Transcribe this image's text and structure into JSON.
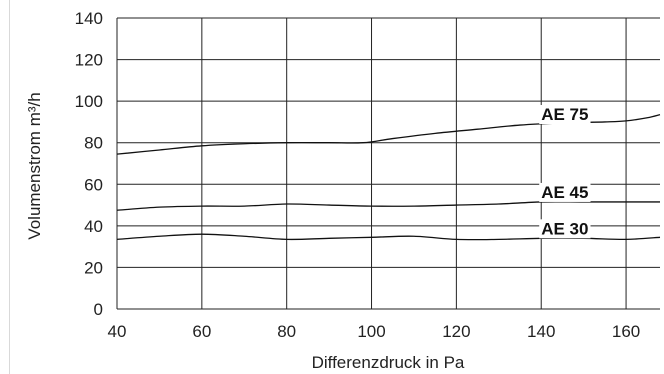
{
  "chart_data": {
    "type": "line",
    "xlabel": "Differenzdruck in Pa",
    "ylabel": "Volumenstrom m³/h",
    "xlim": [
      40,
      168
    ],
    "ylim": [
      0,
      140
    ],
    "x_ticks": [
      40,
      60,
      80,
      100,
      120,
      140,
      160
    ],
    "y_ticks": [
      0,
      20,
      40,
      60,
      80,
      100,
      120,
      140
    ],
    "grid": true,
    "series": [
      {
        "name": "AE 75",
        "x": [
          40,
          50,
          60,
          70,
          80,
          90,
          98,
          105,
          115,
          125,
          135,
          145,
          155,
          160,
          165,
          168
        ],
        "y": [
          74.5,
          76.5,
          78.5,
          79.5,
          80,
          80,
          80,
          82,
          84.5,
          86.5,
          88.5,
          89.5,
          90,
          90.5,
          92,
          93.5
        ]
      },
      {
        "name": "AE 45",
        "x": [
          40,
          50,
          60,
          70,
          80,
          90,
          100,
          110,
          120,
          130,
          140,
          150,
          160,
          168
        ],
        "y": [
          47.5,
          49,
          49.5,
          49.5,
          50.5,
          50,
          49.5,
          49.5,
          50,
          50.5,
          51.5,
          51.5,
          51.5,
          51.5
        ]
      },
      {
        "name": "AE 30",
        "x": [
          40,
          50,
          60,
          70,
          80,
          90,
          100,
          110,
          120,
          130,
          140,
          150,
          160,
          168
        ],
        "y": [
          33.5,
          35,
          36,
          35,
          33.5,
          34,
          34.5,
          35,
          33.5,
          33.5,
          34,
          34,
          33.5,
          34.5
        ]
      }
    ]
  }
}
